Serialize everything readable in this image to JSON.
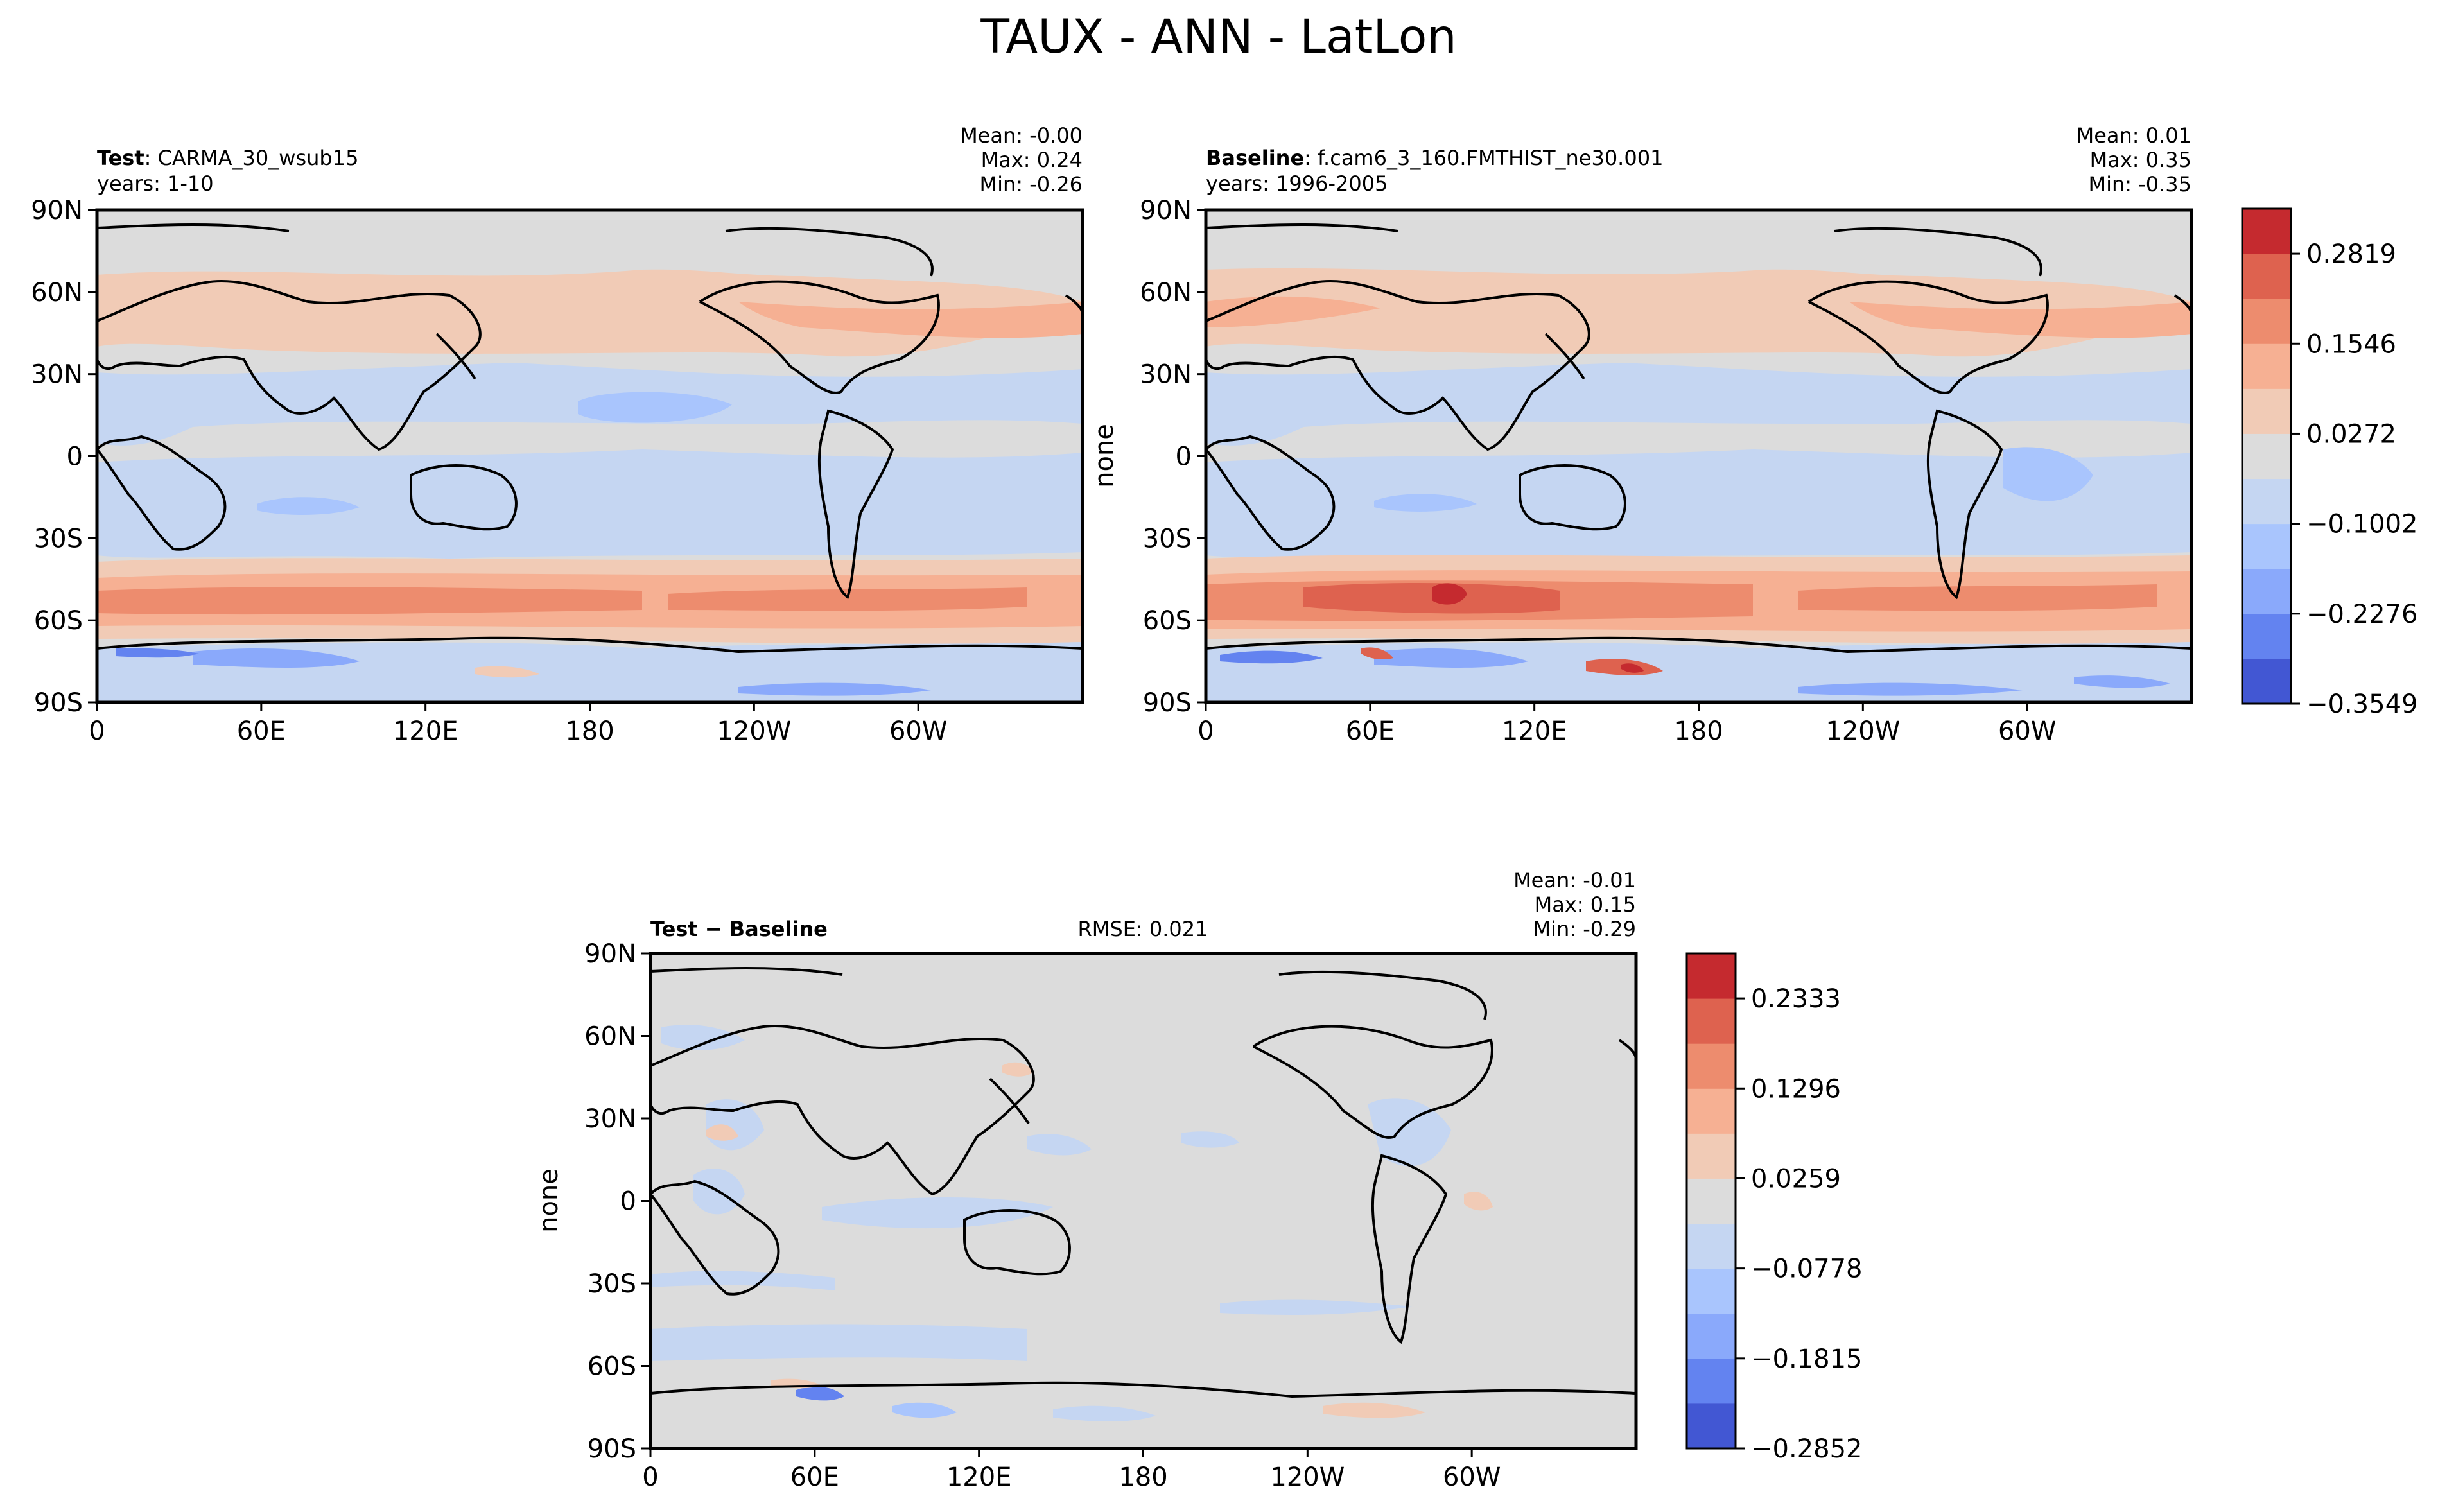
{
  "figure": {
    "title": "TAUX - ANN - LatLon"
  },
  "panels": [
    {
      "id": "test",
      "label_bold": "Test",
      "label_rest": ": CARMA_30_wsub15",
      "years": "years: 1-10",
      "stats": {
        "mean": "Mean: -0.00",
        "max": "Max:  0.24",
        "min": "Min: -0.26"
      },
      "ylabel": ""
    },
    {
      "id": "baseline",
      "label_bold": "Baseline",
      "label_rest": ": f.cam6_3_160.FMTHIST_ne30.001",
      "years": "years: 1996-2005",
      "stats": {
        "mean": "Mean:  0.01",
        "max": "Max:  0.35",
        "min": "Min: -0.35"
      },
      "ylabel": "none"
    },
    {
      "id": "diff",
      "label_bold": "Test",
      "label_rest": " − Baseline",
      "rmse": "RMSE: 0.021",
      "stats": {
        "mean": "Mean: -0.01",
        "max": "Max:  0.15",
        "min": "Min: -0.29"
      },
      "ylabel": "none"
    }
  ],
  "colorbars": [
    {
      "id": "main",
      "levels": [
        "0.2819",
        "0.1546",
        "0.0272",
        "−0.1002",
        "−0.2276",
        "−0.3549"
      ],
      "colors": [
        "#4257d3",
        "#6383f0",
        "#8aa9fb",
        "#a9c5fd",
        "#c5d6f2",
        "#dcdcdc",
        "#f1cbb6",
        "#f6b093",
        "#ed8c6e",
        "#de624f",
        "#c52a2f"
      ]
    },
    {
      "id": "diff",
      "levels": [
        "0.2333",
        "0.1296",
        "0.0259",
        "−0.0778",
        "−0.1815",
        "−0.2852"
      ],
      "colors": [
        "#4257d3",
        "#6383f0",
        "#8aa9fb",
        "#a9c5fd",
        "#c5d6f2",
        "#dcdcdc",
        "#f1cbb6",
        "#f6b093",
        "#ed8c6e",
        "#de624f",
        "#c52a2f"
      ]
    }
  ],
  "chart_data": [
    {
      "type": "heatmap",
      "title": "TAUX - ANN - LatLon",
      "panel": "Test: CARMA_30_wsub15 (years: 1-10)",
      "x_ticks": [
        "0",
        "60E",
        "120E",
        "180",
        "120W",
        "60W"
      ],
      "y_ticks": [
        "90N",
        "60N",
        "30N",
        "0",
        "30S",
        "60S",
        "90S"
      ],
      "xlim": [
        0,
        360
      ],
      "ylim": [
        -90,
        90
      ],
      "zonal_mean_taux": {
        "lat": [
          -80,
          -70,
          -60,
          -50,
          -40,
          -30,
          -15,
          0,
          15,
          30,
          45,
          55,
          70,
          80
        ],
        "value": [
          -0.03,
          -0.06,
          0.03,
          0.19,
          0.12,
          0.03,
          -0.05,
          -0.03,
          -0.06,
          0.03,
          0.08,
          0.05,
          0.0,
          0.0
        ]
      },
      "stats": {
        "mean": -0.0,
        "max": 0.24,
        "min": -0.26
      }
    },
    {
      "type": "heatmap",
      "title": "TAUX - ANN - LatLon",
      "panel": "Baseline: f.cam6_3_160.FMTHIST_ne30.001 (years: 1996-2005)",
      "x_ticks": [
        "0",
        "60E",
        "120E",
        "180",
        "120W",
        "60W"
      ],
      "y_ticks": [
        "90N",
        "60N",
        "30N",
        "0",
        "30S",
        "60S",
        "90S"
      ],
      "xlim": [
        0,
        360
      ],
      "ylim": [
        -90,
        90
      ],
      "ylabel": "none",
      "zonal_mean_taux": {
        "lat": [
          -80,
          -70,
          -60,
          -50,
          -40,
          -30,
          -15,
          0,
          15,
          30,
          45,
          55,
          70,
          80
        ],
        "value": [
          -0.04,
          -0.08,
          0.04,
          0.22,
          0.13,
          0.03,
          -0.05,
          -0.04,
          -0.07,
          0.03,
          0.08,
          0.06,
          0.0,
          0.0
        ]
      },
      "stats": {
        "mean": 0.01,
        "max": 0.35,
        "min": -0.35
      }
    },
    {
      "type": "heatmap",
      "title": "TAUX - ANN - LatLon",
      "panel": "Test − Baseline",
      "x_ticks": [
        "0",
        "60E",
        "120E",
        "180",
        "120W",
        "60W"
      ],
      "y_ticks": [
        "90N",
        "60N",
        "30N",
        "0",
        "30S",
        "60S",
        "90S"
      ],
      "xlim": [
        0,
        360
      ],
      "ylim": [
        -90,
        90
      ],
      "ylabel": "none",
      "rmse": 0.021,
      "stats": {
        "mean": -0.01,
        "max": 0.15,
        "min": -0.29
      }
    }
  ]
}
